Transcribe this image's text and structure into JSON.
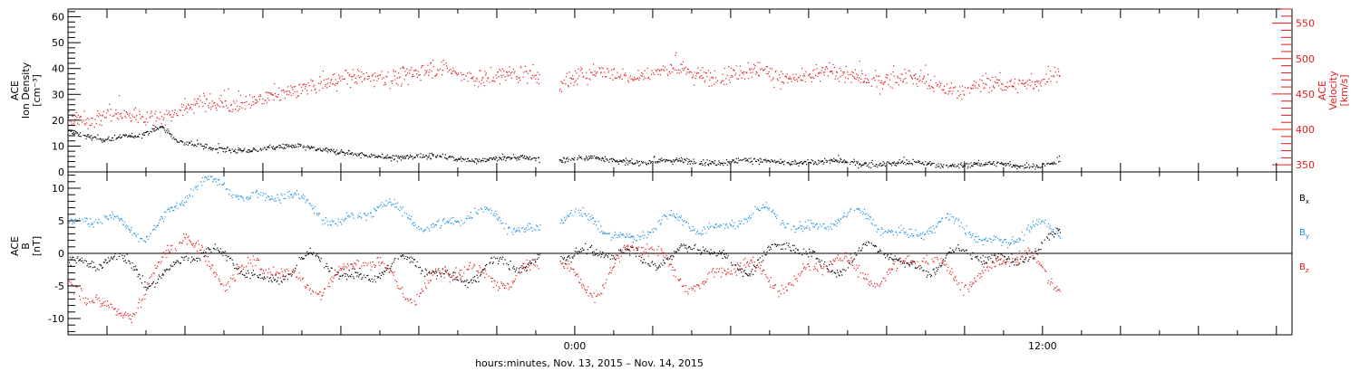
{
  "chart_data": [
    {
      "type": "scatter",
      "panel": "top",
      "ylabel_left": [
        "ACE",
        "Ion Density",
        "[cm⁻³]"
      ],
      "ylabel_right": [
        "ACE",
        "Velocity",
        "[km/s]"
      ],
      "ylim_left": [
        0,
        63
      ],
      "ylim_right": [
        340,
        570
      ],
      "yticks_left": [
        "0",
        "10",
        "20",
        "30",
        "40",
        "50",
        "60"
      ],
      "yticks_right": [
        "350",
        "400",
        "450",
        "500",
        "550"
      ],
      "colors": {
        "density": "#000000",
        "velocity": "#e41a1c"
      },
      "series": [
        {
          "key": "density",
          "axis": "left",
          "knots": [
            [
              -13.0,
              16
            ],
            [
              -12.0,
              12
            ],
            [
              -11.2,
              14
            ],
            [
              -10.6,
              18
            ],
            [
              -10.2,
              12
            ],
            [
              -9.5,
              9
            ],
            [
              -8.0,
              8.5
            ],
            [
              -7.0,
              10
            ],
            [
              -6.5,
              9
            ],
            [
              -5.5,
              6
            ],
            [
              -4.0,
              6
            ],
            [
              -3.0,
              5
            ],
            [
              -1.5,
              5
            ],
            [
              -0.5,
              5
            ],
            [
              0.5,
              5
            ],
            [
              1.5,
              4
            ],
            [
              3.0,
              4
            ],
            [
              5.0,
              4
            ],
            [
              7.0,
              3.5
            ],
            [
              9.0,
              3
            ],
            [
              11.0,
              2.5
            ],
            [
              12.4,
              3
            ]
          ],
          "noise": 0.9
        },
        {
          "key": "velocity",
          "axis": "right",
          "knots": [
            [
              -13.0,
              420
            ],
            [
              -11.5,
              415
            ],
            [
              -10.0,
              428
            ],
            [
              -8.5,
              440
            ],
            [
              -7.5,
              445
            ],
            [
              -6.5,
              472
            ],
            [
              -5.5,
              468
            ],
            [
              -4.5,
              482
            ],
            [
              -3.0,
              480
            ],
            [
              -1.5,
              472
            ],
            [
              -1.0,
              477
            ],
            [
              -0.5,
              470
            ],
            [
              0.5,
              475
            ],
            [
              1.5,
              480
            ],
            [
              3.0,
              480
            ],
            [
              4.5,
              478
            ],
            [
              6.5,
              476
            ],
            [
              8.0,
              472
            ],
            [
              9.0,
              465
            ],
            [
              10.0,
              458
            ],
            [
              11.0,
              460
            ],
            [
              12.4,
              478
            ]
          ],
          "noise": 10
        }
      ]
    },
    {
      "type": "scatter",
      "panel": "bottom",
      "ylabel": [
        "ACE",
        "B",
        "[nT]"
      ],
      "ylim": [
        -12.5,
        12.5
      ],
      "yticks": [
        "-10",
        "-5",
        "0",
        "5",
        "10"
      ],
      "legend": [
        "B",
        "B",
        "B"
      ],
      "legend_sub": [
        "x",
        "y",
        "z"
      ],
      "legend_position": "right",
      "colors": {
        "bx": "#000000",
        "by": "#1f8fe6",
        "bz": "#e41a1c"
      },
      "series": [
        {
          "key": "bx",
          "knots": [
            [
              -13.0,
              0
            ],
            [
              -12.0,
              -1
            ],
            [
              -11.0,
              -5
            ],
            [
              -10.0,
              1
            ],
            [
              -9.0,
              -2
            ],
            [
              -8.0,
              -3
            ],
            [
              -7.0,
              -2
            ],
            [
              -6.0,
              -3
            ],
            [
              -5.0,
              -2
            ],
            [
              -4.0,
              -3
            ],
            [
              -3.0,
              -2.5
            ],
            [
              -2.0,
              -3
            ],
            [
              -1.5,
              -3
            ],
            [
              -0.5,
              2
            ],
            [
              0.5,
              -2
            ],
            [
              1.5,
              1
            ],
            [
              2.5,
              -1
            ],
            [
              3.5,
              0
            ],
            [
              4.5,
              -1
            ],
            [
              5.5,
              0
            ],
            [
              6.5,
              -1
            ],
            [
              7.5,
              0
            ],
            [
              8.5,
              -2
            ],
            [
              9.5,
              0
            ],
            [
              10.5,
              -2
            ],
            [
              11.5,
              1
            ],
            [
              12.4,
              2
            ]
          ],
          "wobble": 2.2,
          "noise": 0.6
        },
        {
          "key": "by",
          "knots": [
            [
              -13.0,
              5
            ],
            [
              -12.0,
              4
            ],
            [
              -11.0,
              4
            ],
            [
              -10.0,
              8
            ],
            [
              -9.0,
              11
            ],
            [
              -8.0,
              9
            ],
            [
              -7.0,
              7
            ],
            [
              -6.0,
              6
            ],
            [
              -5.0,
              6
            ],
            [
              -4.0,
              5.5
            ],
            [
              -3.0,
              5
            ],
            [
              -2.0,
              5
            ],
            [
              -1.5,
              5
            ],
            [
              -0.5,
              4
            ],
            [
              0.5,
              5
            ],
            [
              1.5,
              3
            ],
            [
              2.5,
              4
            ],
            [
              3.5,
              5
            ],
            [
              4.5,
              5
            ],
            [
              5.5,
              5
            ],
            [
              6.5,
              5
            ],
            [
              7.5,
              4.5
            ],
            [
              8.5,
              4
            ],
            [
              9.5,
              3.5
            ],
            [
              10.5,
              3
            ],
            [
              11.5,
              3
            ],
            [
              12.4,
              2.5
            ]
          ],
          "wobble": 2.0,
          "noise": 0.6
        },
        {
          "key": "bz",
          "knots": [
            [
              -13.0,
              -7
            ],
            [
              -12.0,
              -8
            ],
            [
              -11.0,
              -6
            ],
            [
              -10.0,
              2
            ],
            [
              -9.0,
              -2
            ],
            [
              -8.0,
              -4
            ],
            [
              -7.0,
              -3
            ],
            [
              -6.0,
              -4
            ],
            [
              -5.0,
              -2
            ],
            [
              -4.0,
              -5
            ],
            [
              -3.0,
              -4
            ],
            [
              -2.0,
              -2
            ],
            [
              -1.5,
              -3
            ],
            [
              -0.5,
              -3
            ],
            [
              0.5,
              -4
            ],
            [
              1.5,
              0
            ],
            [
              2.5,
              -2
            ],
            [
              3.5,
              -4
            ],
            [
              4.5,
              -3
            ],
            [
              5.5,
              -3
            ],
            [
              6.5,
              -3
            ],
            [
              7.5,
              -2
            ],
            [
              8.5,
              -2
            ],
            [
              9.5,
              -3
            ],
            [
              10.5,
              -2
            ],
            [
              11.5,
              -2
            ],
            [
              12.4,
              -3
            ]
          ],
          "wobble": 2.8,
          "noise": 0.8
        }
      ]
    }
  ],
  "x_axis": {
    "range_hours": [
      -13.0,
      18.4
    ],
    "major_tick_hours": [
      -12,
      -10,
      -8,
      -6,
      -4,
      -2,
      0,
      2,
      4,
      6,
      8,
      10,
      12,
      14,
      16,
      18
    ],
    "labeled_ticks": [
      {
        "hour": 0,
        "label": "0:00"
      },
      {
        "hour": 12,
        "label": "12:00"
      }
    ],
    "data_gap_hours": [
      -0.9,
      -0.4
    ],
    "data_end_hour": 12.45
  },
  "xlabel": "hours:minutes, Nov. 13, 2015 – Nov. 14, 2015"
}
